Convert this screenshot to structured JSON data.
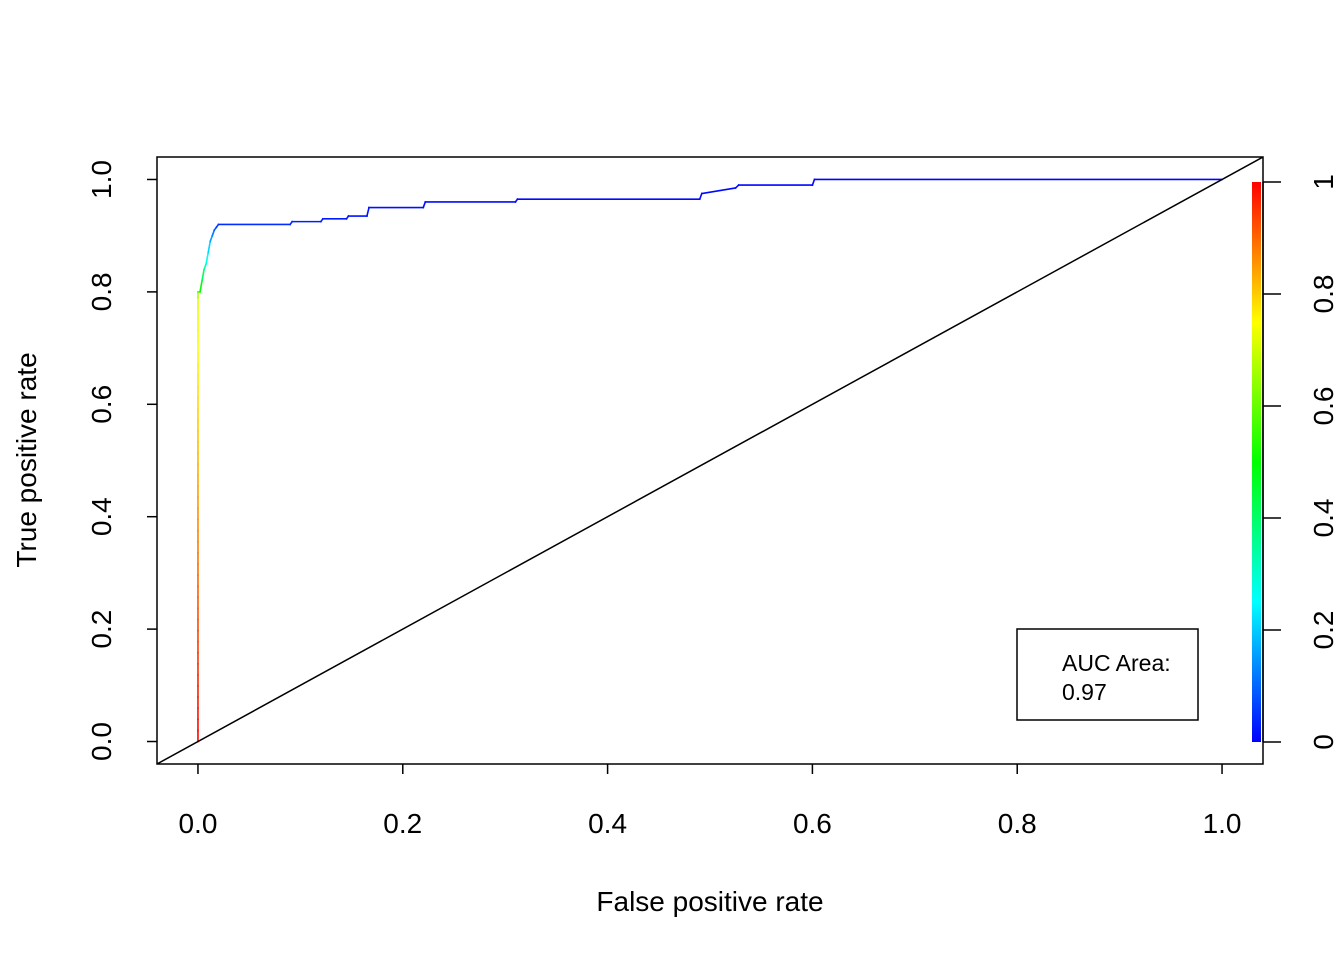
{
  "chart_data": {
    "type": "line",
    "xlabel": "False positive rate",
    "ylabel": "True positive rate",
    "xlim": [
      -0.04,
      1.04
    ],
    "ylim": [
      -0.04,
      1.04
    ],
    "x_ticks": [
      "0.0",
      "0.2",
      "0.4",
      "0.6",
      "0.8",
      "1.0"
    ],
    "y_ticks": [
      "0.0",
      "0.2",
      "0.4",
      "0.6",
      "0.8",
      "1.0"
    ],
    "grid": false,
    "series": [
      {
        "kind": "roc",
        "color_by_cutoff": true,
        "x": [
          0,
          0,
          0,
          0.002,
          0.004,
          0.006,
          0.008,
          0.01,
          0.012,
          0.014,
          0.016,
          0.018,
          0.02,
          0.09,
          0.092,
          0.12,
          0.122,
          0.145,
          0.147,
          0.165,
          0.167,
          0.22,
          0.222,
          0.31,
          0.312,
          0.49,
          0.492,
          0.525,
          0.528,
          0.6,
          0.602,
          1.0
        ],
        "y": [
          0,
          0.79,
          0.8,
          0.8,
          0.82,
          0.84,
          0.85,
          0.87,
          0.89,
          0.9,
          0.91,
          0.915,
          0.92,
          0.92,
          0.925,
          0.925,
          0.93,
          0.93,
          0.935,
          0.935,
          0.95,
          0.95,
          0.96,
          0.96,
          0.965,
          0.965,
          0.975,
          0.985,
          0.99,
          0.99,
          1.0,
          1.0
        ],
        "cutoff": [
          1.0,
          0.72,
          0.62,
          0.55,
          0.45,
          0.38,
          0.3,
          0.24,
          0.18,
          0.14,
          0.1,
          0.07,
          0.05,
          0.04,
          0.035,
          0.03,
          0.028,
          0.025,
          0.022,
          0.02,
          0.018,
          0.015,
          0.013,
          0.011,
          0.01,
          0.008,
          0.007,
          0.006,
          0.005,
          0.004,
          0.003,
          0.0
        ]
      },
      {
        "kind": "diagonal",
        "color": "#000000",
        "x": [
          -0.04,
          1.04
        ],
        "y": [
          -0.04,
          1.04
        ]
      }
    ],
    "colorbar": {
      "ticks": [
        "0",
        "0.2",
        "0.4",
        "0.6",
        "0.8",
        "1"
      ],
      "range": [
        0,
        1
      ],
      "colors": [
        "#0000ff",
        "#00ffff",
        "#00ff00",
        "#ffff00",
        "#ff0000"
      ]
    },
    "legend": {
      "position": "bottom-right",
      "lines": [
        "AUC Area:",
        "0.97"
      ]
    }
  }
}
